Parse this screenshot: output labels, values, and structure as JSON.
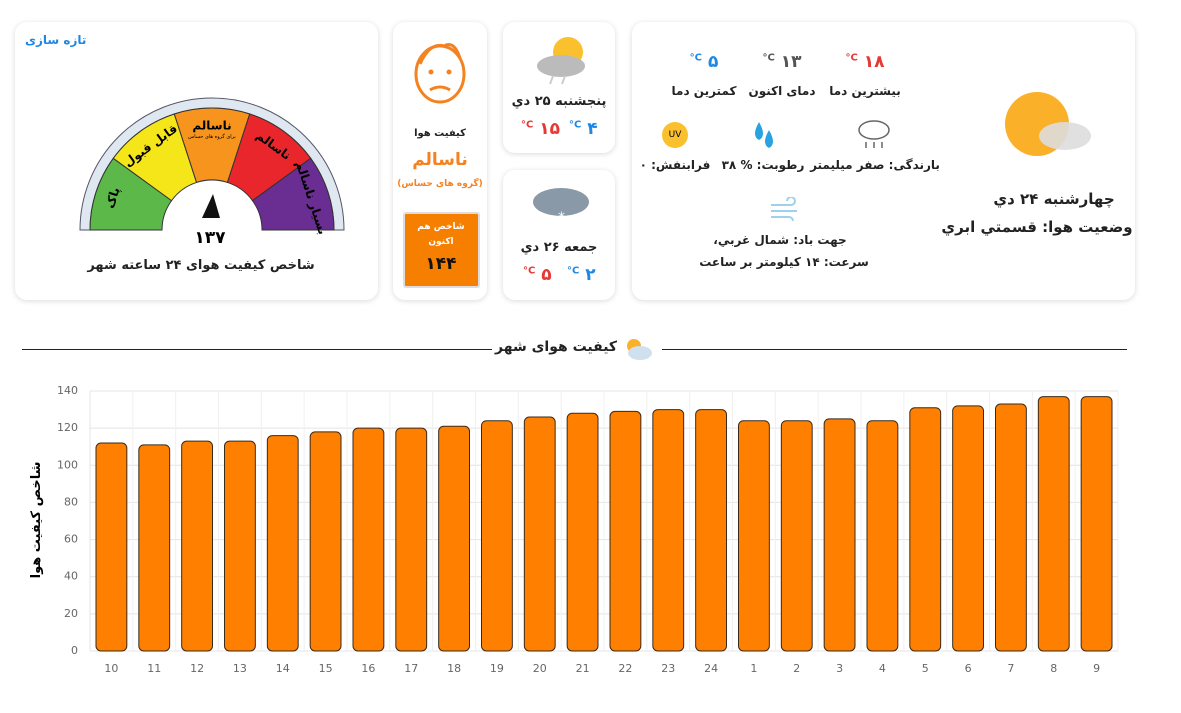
{
  "refresh": "تازه سازی",
  "gauge": {
    "segments": [
      {
        "label": "پاک",
        "color": "#5cb848"
      },
      {
        "label": "قابل قبول",
        "color": "#f5e61a"
      },
      {
        "label": "ناسالم",
        "color": "#f7941d"
      },
      {
        "label": "ناسالم",
        "color": "#e8262c"
      },
      {
        "label": "بسیار ناسالم",
        "color": "#6a2d91"
      }
    ],
    "sub_label": "برای گروه های حساس",
    "value": "۱۳۷",
    "title": "شاخص کیفیت هوای ۲۴ ساعته شهر"
  },
  "status": {
    "label": "کیفیت هوا",
    "level": "ناسالم",
    "group": "(گروه های حساس)",
    "now_label": "شاخص هم اکنون",
    "now_value": "۱۴۴"
  },
  "forecast": [
    {
      "day": "پنجشنبه ۲۵ دي",
      "max": {
        "value": "۱۵",
        "unit": "C°"
      },
      "min": {
        "value": "۴",
        "unit": "C°"
      }
    },
    {
      "day": "جمعه ۲۶ دي",
      "max": {
        "value": "۵",
        "unit": "C°"
      },
      "min": {
        "value": "۲",
        "unit": "C°"
      }
    }
  ],
  "current": {
    "max": {
      "value": "۱۸",
      "unit": "C°",
      "label": "بیشترین دما"
    },
    "now": {
      "value": "۱۳",
      "unit": "C°",
      "label": "دمای اکنون"
    },
    "min": {
      "value": "۵",
      "unit": "C°",
      "label": "کمترین دما"
    },
    "rain": "بارندگی: صفر میلیمتر",
    "humidity": "رطوبت: % ۳۸",
    "uv_icon": "UV",
    "uv": "فرابنفش: ۰",
    "wind_dir": "جهت باد: شمال غربي،",
    "wind_speed": "سرعت: ۱۴ کیلومتر بر ساعت",
    "date": "چهارشنبه ۲۴ دي",
    "condition": "وضعیت هوا: قسمتي ابري"
  },
  "section_title": "کیفیت هوای شهر",
  "chart_data": {
    "type": "bar",
    "y_label": "شاخص کیفیت هوا",
    "categories": [
      "10",
      "11",
      "12",
      "13",
      "14",
      "15",
      "16",
      "17",
      "18",
      "19",
      "20",
      "21",
      "22",
      "23",
      "24",
      "1",
      "2",
      "3",
      "4",
      "5",
      "6",
      "7",
      "8",
      "9"
    ],
    "values": [
      112,
      111,
      113,
      113,
      116,
      118,
      120,
      120,
      121,
      124,
      126,
      128,
      129,
      130,
      130,
      124,
      124,
      125,
      124,
      131,
      132,
      133,
      137,
      137
    ],
    "color": "#ff8000",
    "ylim": [
      0,
      140
    ],
    "yticks": [
      0,
      20,
      40,
      60,
      80,
      100,
      120,
      140
    ],
    "grid": true
  }
}
